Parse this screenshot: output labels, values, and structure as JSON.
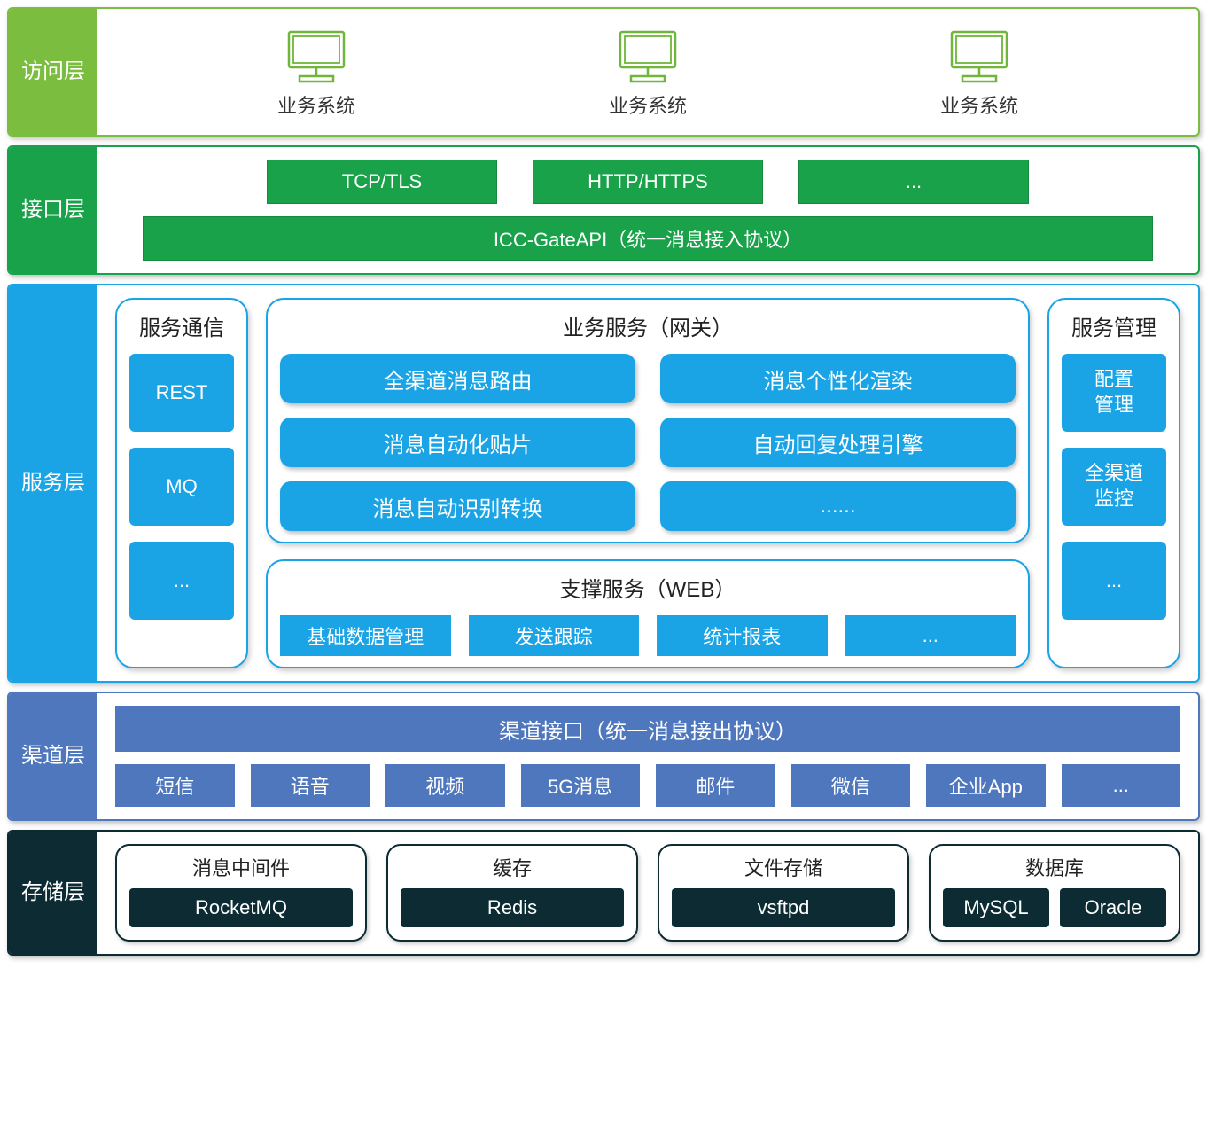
{
  "colors": {
    "access_primary": "#7bbd3f",
    "access_border": "#7bbd3f",
    "access_icon_stroke": "#6fb63a",
    "interface_primary": "#1aa24a",
    "interface_border": "#1aa24a",
    "service_primary": "#1aa4e6",
    "service_border": "#1aa4e6",
    "channel_primary": "#4f77bd",
    "channel_border": "#4f77bd",
    "storage_primary": "#0c2b33",
    "storage_border": "#0c2b33",
    "white": "#ffffff",
    "text_dark": "#333333"
  },
  "layers": {
    "access": {
      "label": "访问层",
      "items": [
        {
          "caption": "业务系统"
        },
        {
          "caption": "业务系统"
        },
        {
          "caption": "业务系统"
        }
      ]
    },
    "interface": {
      "label": "接口层",
      "row1": [
        "TCP/TLS",
        "HTTP/HTTPS",
        "..."
      ],
      "full": "ICC-GateAPI（统一消息接入协议）"
    },
    "service": {
      "label": "服务层",
      "comm": {
        "title": "服务通信",
        "items": [
          "REST",
          "MQ",
          "..."
        ]
      },
      "gateway": {
        "title": "业务服务（网关）",
        "pills": [
          "全渠道消息路由",
          "消息个性化渲染",
          "消息自动化贴片",
          "自动回复处理引擎",
          "消息自动识别转换",
          "......"
        ]
      },
      "support": {
        "title": "支撑服务（WEB）",
        "items": [
          "基础数据管理",
          "发送跟踪",
          "统计报表",
          "..."
        ]
      },
      "mgmt": {
        "title": "服务管理",
        "items": [
          "配置\n管理",
          "全渠道\n监控",
          "..."
        ]
      }
    },
    "channel": {
      "label": "渠道层",
      "full": "渠道接口（统一消息接出协议）",
      "items": [
        "短信",
        "语音",
        "视频",
        "5G消息",
        "邮件",
        "微信",
        "企业App",
        "..."
      ]
    },
    "storage": {
      "label": "存储层",
      "groups": [
        {
          "title": "消息中间件",
          "items": [
            "RocketMQ"
          ]
        },
        {
          "title": "缓存",
          "items": [
            "Redis"
          ]
        },
        {
          "title": "文件存储",
          "items": [
            "vsftpd"
          ]
        },
        {
          "title": "数据库",
          "items": [
            "MySQL",
            "Oracle"
          ]
        }
      ]
    }
  }
}
